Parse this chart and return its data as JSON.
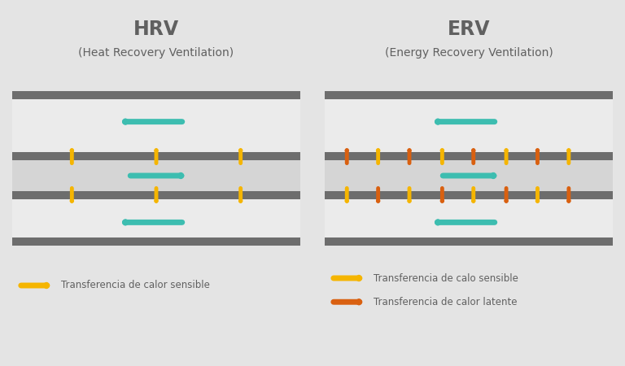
{
  "bg_color": "#e4e4e4",
  "box_outer_color": "#ebebeb",
  "box_mid_color": "#d8d8d8",
  "bar_color": "#6d6d6d",
  "teal": "#3dbdb0",
  "yellow": "#f5b500",
  "orange": "#d96010",
  "text_color": "#606060",
  "hrv_title": "HRV",
  "hrv_subtitle": "(Heat Recovery Ventilation)",
  "erv_title": "ERV",
  "erv_subtitle": "(Energy Recovery Ventilation)",
  "legend_sensible_hrv": "Transferencia de calor sensible",
  "legend_sensible_erv": "Transferencia de calo sensible",
  "legend_latente_erv": "Transferencia de calor latente"
}
